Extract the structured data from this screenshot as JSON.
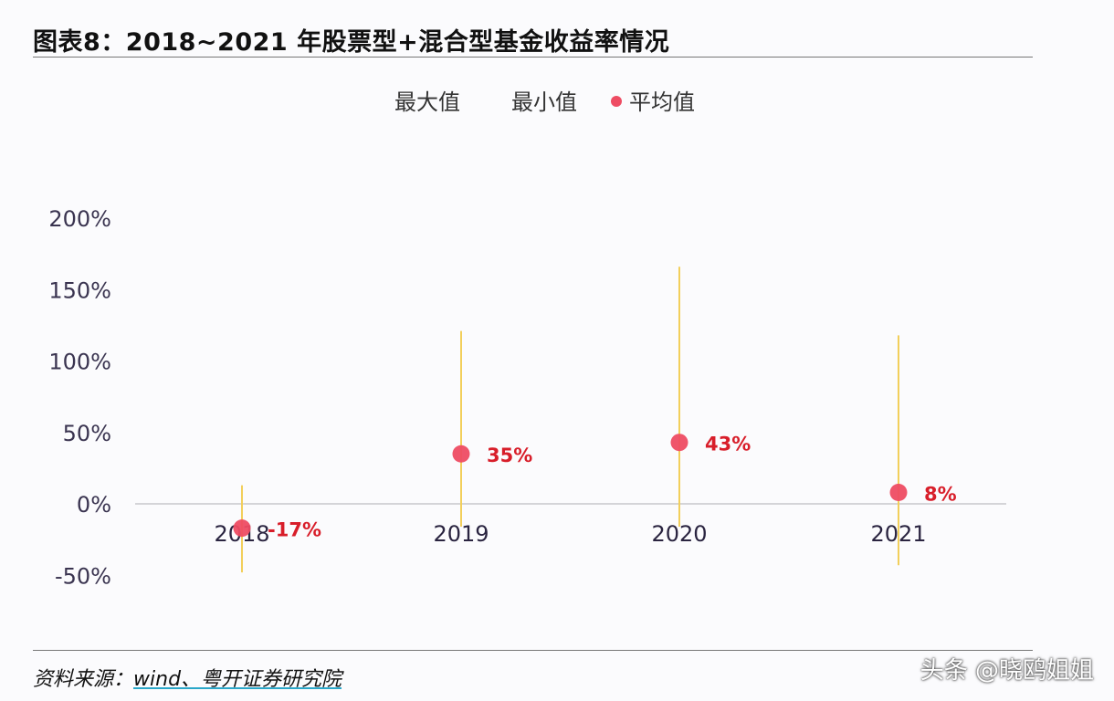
{
  "title": "图表8：2018~2021 年股票型+混合型基金收益率情况",
  "source_prefix": "资料来源：",
  "source_text": "wind、粤开证券研究院",
  "watermark": "头条 @晓鸥姐姐",
  "chart_data": {
    "type": "scatter",
    "categories": [
      "2018",
      "2019",
      "2020",
      "2021"
    ],
    "series": [
      {
        "name": "最大值",
        "values": [
          13,
          121,
          166,
          118
        ],
        "color": "#f2cf5b"
      },
      {
        "name": "最小值",
        "values": [
          -48,
          -16,
          -16,
          -43
        ],
        "color": "#f2cf5b"
      },
      {
        "name": "平均值",
        "values": [
          -17,
          35,
          43,
          8
        ],
        "color": "#ee4c63"
      }
    ],
    "data_labels": [
      "-17%",
      "35%",
      "43%",
      "8%"
    ],
    "yticks": [
      "200%",
      "150%",
      "100%",
      "50%",
      "0%",
      "-50%"
    ],
    "ylim": [
      -50,
      200
    ],
    "legend": [
      "最大值",
      "最小值",
      "平均值"
    ],
    "legend_position": "top",
    "label_color": "#d81e2a",
    "grid": false
  }
}
